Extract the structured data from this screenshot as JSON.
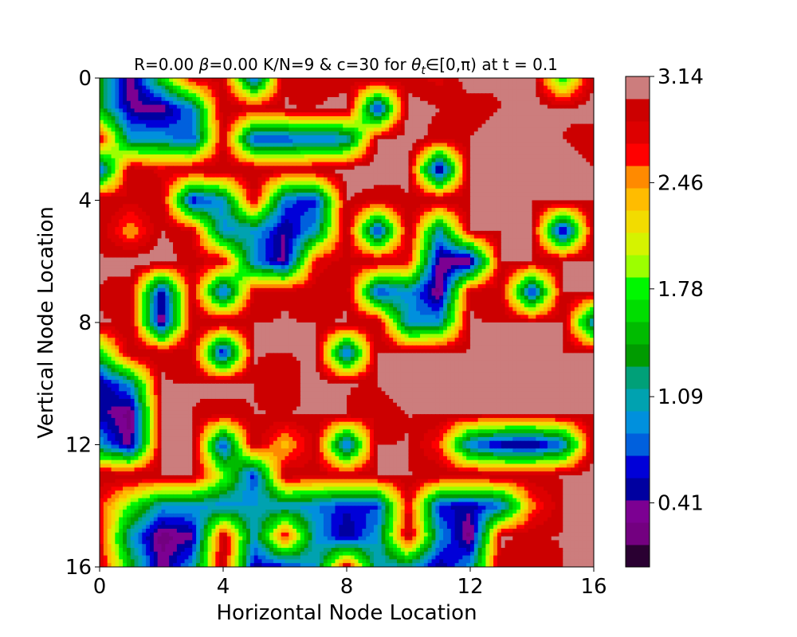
{
  "chart_data": {
    "type": "heatmap",
    "subtype": "filled-contour",
    "title": "R=0.00 β=0.00 K/N=9 & c=30 for θ_t∈[0,π) at t = 0.1",
    "title_parts": {
      "prefix": "R=0.00 ",
      "beta_symbol": "β",
      "middle": "=0.00 K/N=9 & c=30 for ",
      "theta_symbol": "θ",
      "theta_subscript": "t",
      "suffix": "∈[0,π) at t = 0.1"
    },
    "xlabel": "Horizontal Node Location",
    "ylabel": "Vertical Node Location",
    "xlim": [
      0,
      16
    ],
    "ylim": [
      16,
      0
    ],
    "y_inverted": true,
    "xticks": [
      "0",
      "4",
      "8",
      "12",
      "16"
    ],
    "yticks": [
      "0",
      "4",
      "8",
      "12",
      "16"
    ],
    "grid": false,
    "colormap": "nipy_spectral",
    "levels": 22,
    "vmin": 0.0,
    "vmax": 3.14,
    "colorbar_ticks": [
      "0.41",
      "1.09",
      "1.78",
      "2.46",
      "3.14"
    ],
    "colorbar_tick_values": [
      0.41,
      1.09,
      1.78,
      2.46,
      3.14
    ],
    "colorbar_colors": [
      "#2a0032",
      "#730080",
      "#7c0092",
      "#0000a0",
      "#0000d8",
      "#0060dd",
      "#0090dd",
      "#00a2b0",
      "#00a078",
      "#009b00",
      "#00bb00",
      "#00dd00",
      "#00f700",
      "#9cff00",
      "#d5f300",
      "#f2dc00",
      "#ffbc00",
      "#ff8a00",
      "#ff0000",
      "#dd0000",
      "#cc0000",
      "#cc7d7d"
    ],
    "grid_values": [
      [
        1.5,
        0.2,
        1.6,
        2.9,
        2.9,
        0.6,
        3.0,
        2.9,
        2.9,
        3.1,
        2.9,
        2.8,
        3.1,
        3.0,
        3.1,
        1.6,
        3.0
      ],
      [
        1.4,
        0.4,
        0.3,
        0.9,
        3.0,
        2.9,
        3.0,
        3.0,
        3.1,
        0.5,
        3.1,
        3.0,
        2.9,
        3.0,
        3.1,
        3.0,
        3.1
      ],
      [
        2.9,
        1.0,
        1.0,
        0.7,
        2.9,
        0.6,
        0.7,
        0.8,
        0.9,
        3.0,
        3.1,
        2.9,
        3.0,
        3.1,
        3.1,
        3.0,
        2.9
      ],
      [
        0.7,
        3.0,
        2.8,
        3.0,
        3.0,
        3.0,
        2.9,
        3.0,
        3.1,
        3.1,
        3.0,
        0.2,
        3.1,
        3.0,
        3.1,
        3.1,
        3.0
      ],
      [
        3.0,
        2.9,
        3.0,
        0.5,
        1.0,
        2.9,
        0.8,
        0.6,
        3.0,
        2.9,
        3.0,
        3.0,
        3.0,
        3.0,
        3.0,
        3.1,
        3.0
      ],
      [
        3.0,
        2.4,
        3.0,
        2.9,
        0.9,
        1.0,
        0.4,
        1.0,
        3.0,
        0.5,
        3.0,
        1.0,
        3.0,
        3.0,
        3.0,
        0.3,
        3.0
      ],
      [
        3.0,
        3.1,
        3.1,
        2.9,
        2.9,
        0.9,
        0.3,
        2.8,
        2.9,
        3.0,
        2.8,
        0.3,
        0.2,
        3.0,
        3.0,
        3.0,
        3.0
      ],
      [
        3.0,
        2.9,
        0.4,
        2.9,
        0.6,
        2.9,
        3.0,
        2.9,
        3.0,
        0.6,
        1.0,
        0.2,
        3.0,
        2.9,
        0.5,
        3.0,
        3.0
      ],
      [
        3.0,
        3.0,
        0.2,
        3.0,
        3.0,
        3.0,
        3.0,
        3.0,
        3.0,
        3.0,
        0.9,
        1.0,
        3.0,
        3.0,
        3.0,
        3.0,
        0.8
      ],
      [
        1.6,
        3.0,
        3.0,
        2.9,
        0.4,
        3.0,
        3.0,
        3.0,
        0.6,
        3.0,
        3.0,
        3.1,
        3.0,
        3.0,
        3.0,
        3.0,
        3.0
      ],
      [
        0.4,
        1.0,
        3.0,
        3.0,
        3.1,
        3.0,
        2.9,
        3.1,
        3.0,
        3.0,
        3.1,
        3.0,
        3.0,
        3.0,
        3.0,
        3.0,
        3.0
      ],
      [
        0.5,
        0.2,
        3.0,
        3.0,
        2.9,
        3.0,
        3.0,
        3.0,
        3.0,
        2.9,
        3.0,
        3.0,
        3.0,
        3.0,
        3.0,
        3.0,
        3.0
      ],
      [
        1.0,
        0.3,
        3.0,
        3.1,
        0.6,
        3.0,
        2.3,
        2.9,
        0.6,
        3.0,
        3.0,
        2.6,
        0.8,
        0.4,
        0.3,
        0.8,
        3.0
      ],
      [
        3.0,
        3.0,
        3.0,
        3.0,
        2.0,
        0.6,
        3.0,
        2.9,
        2.9,
        3.0,
        3.0,
        3.0,
        3.0,
        3.0,
        3.0,
        3.0,
        3.1
      ],
      [
        2.7,
        1.8,
        1.0,
        1.0,
        0.9,
        1.0,
        1.0,
        0.9,
        0.6,
        0.7,
        2.8,
        0.6,
        0.5,
        0.8,
        2.5,
        3.0,
        3.0
      ],
      [
        2.8,
        1.0,
        0.2,
        0.4,
        3.0,
        1.0,
        2.8,
        1.0,
        0.4,
        1.0,
        3.0,
        1.0,
        0.2,
        3.0,
        3.0,
        3.0,
        3.0
      ],
      [
        2.9,
        1.5,
        0.3,
        1.0,
        3.0,
        0.5,
        0.6,
        1.0,
        3.0,
        1.0,
        1.1,
        0.4,
        1.0,
        3.0,
        2.9,
        3.0,
        3.0
      ]
    ]
  }
}
